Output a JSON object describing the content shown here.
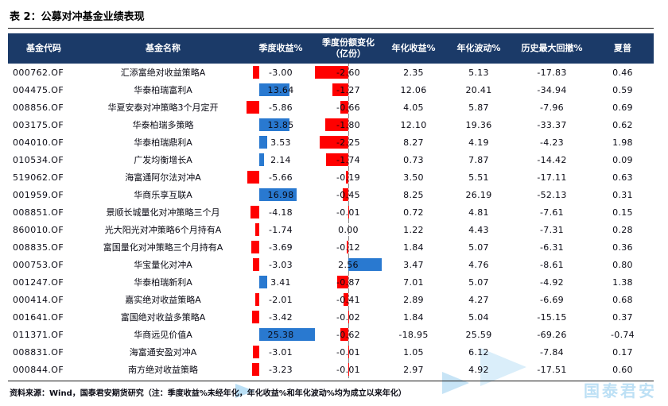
{
  "title": "表 2：公募对冲基金业绩表现",
  "columns": [
    "基金代码",
    "基金名称",
    "季度收益%",
    "季度份额变化（亿份）",
    "年化收益%",
    "年化波动%",
    "历史最大回撤%",
    "夏普"
  ],
  "rows": [
    {
      "code": "000762.OF",
      "name": "汇添富绝对收益策略A",
      "qret": "-3.00",
      "qshare": "-2.60",
      "annret": "2.35",
      "annvol": "5.13",
      "maxdd": "-17.83",
      "sharpe": "0.46"
    },
    {
      "code": "004475.OF",
      "name": "华泰柏瑞富利A",
      "qret": "13.64",
      "qshare": "-1.27",
      "annret": "12.06",
      "annvol": "20.41",
      "maxdd": "-34.94",
      "sharpe": "0.59"
    },
    {
      "code": "008856.OF",
      "name": "华夏安泰对冲策略3个月定开",
      "qret": "-5.86",
      "qshare": "-0.66",
      "annret": "4.05",
      "annvol": "5.87",
      "maxdd": "-7.96",
      "sharpe": "0.69"
    },
    {
      "code": "003175.OF",
      "name": "华泰柏瑞多策略",
      "qret": "13.85",
      "qshare": "-1.80",
      "annret": "12.10",
      "annvol": "19.36",
      "maxdd": "-33.37",
      "sharpe": "0.62"
    },
    {
      "code": "004010.OF",
      "name": "华泰柏瑞鼎利A",
      "qret": "3.53",
      "qshare": "-2.25",
      "annret": "8.27",
      "annvol": "4.19",
      "maxdd": "-4.23",
      "sharpe": "1.98"
    },
    {
      "code": "010534.OF",
      "name": "广发均衡增长A",
      "qret": "2.14",
      "qshare": "-1.74",
      "annret": "0.73",
      "annvol": "7.87",
      "maxdd": "-14.42",
      "sharpe": "0.09"
    },
    {
      "code": "519062.OF",
      "name": "海富通阿尔法对冲A",
      "qret": "-5.66",
      "qshare": "-0.19",
      "annret": "3.50",
      "annvol": "5.51",
      "maxdd": "-17.11",
      "sharpe": "0.63"
    },
    {
      "code": "001959.OF",
      "name": "华商乐享互联A",
      "qret": "16.98",
      "qshare": "-0.45",
      "annret": "8.25",
      "annvol": "26.19",
      "maxdd": "-52.13",
      "sharpe": "0.31"
    },
    {
      "code": "008851.OF",
      "name": "景顺长城量化对冲策略三个月",
      "qret": "-4.18",
      "qshare": "-0.01",
      "annret": "0.72",
      "annvol": "4.81",
      "maxdd": "-7.61",
      "sharpe": "0.15"
    },
    {
      "code": "860010.OF",
      "name": "光大阳光对冲策略6个月持有A",
      "qret": "-1.74",
      "qshare": "0.00",
      "annret": "1.22",
      "annvol": "4.43",
      "maxdd": "-7.31",
      "sharpe": "0.28"
    },
    {
      "code": "008835.OF",
      "name": "富国量化对冲策略三个月持有A",
      "qret": "-3.69",
      "qshare": "-0.12",
      "annret": "1.84",
      "annvol": "5.07",
      "maxdd": "-6.31",
      "sharpe": "0.36"
    },
    {
      "code": "000753.OF",
      "name": "华宝量化对冲A",
      "qret": "-3.03",
      "qshare": "2.56",
      "annret": "3.47",
      "annvol": "4.76",
      "maxdd": "-8.61",
      "sharpe": "0.80"
    },
    {
      "code": "001247.OF",
      "name": "华泰柏瑞新利A",
      "qret": "3.41",
      "qshare": "-0.87",
      "annret": "7.01",
      "annvol": "5.07",
      "maxdd": "-4.92",
      "sharpe": "1.38"
    },
    {
      "code": "000414.OF",
      "name": "嘉实绝对收益策略A",
      "qret": "-2.01",
      "qshare": "-0.41",
      "annret": "2.89",
      "annvol": "4.27",
      "maxdd": "-6.69",
      "sharpe": "0.68"
    },
    {
      "code": "001641.OF",
      "name": "富国绝对收益多策略A",
      "qret": "-3.42",
      "qshare": "-0.02",
      "annret": "1.84",
      "annvol": "5.04",
      "maxdd": "-15.15",
      "sharpe": "0.37"
    },
    {
      "code": "011371.OF",
      "name": "华商远见价值A",
      "qret": "25.38",
      "qshare": "-0.62",
      "annret": "-18.95",
      "annvol": "25.59",
      "maxdd": "-69.26",
      "sharpe": "-0.74"
    },
    {
      "code": "008831.OF",
      "name": "海富通安盈对冲A",
      "qret": "-3.01",
      "qshare": "-0.01",
      "annret": "1.05",
      "annvol": "6.12",
      "maxdd": "-7.84",
      "sharpe": "0.17"
    },
    {
      "code": "000844.OF",
      "name": "南方绝对收益策略",
      "qret": "-3.23",
      "qshare": "-0.01",
      "annret": "2.97",
      "annvol": "4.92",
      "maxdd": "-17.51",
      "sharpe": "0.60"
    }
  ],
  "footnote": "资料来源：Wind，国泰君安期货研究（注：季度收益%未经年化，年化收益%和年化波动%均为成立以来年化）",
  "watermark": "国泰君安",
  "colors": {
    "header_bg": "#1b3a68",
    "bar_positive": "#2979d0",
    "bar_negative": "#ff0000"
  }
}
